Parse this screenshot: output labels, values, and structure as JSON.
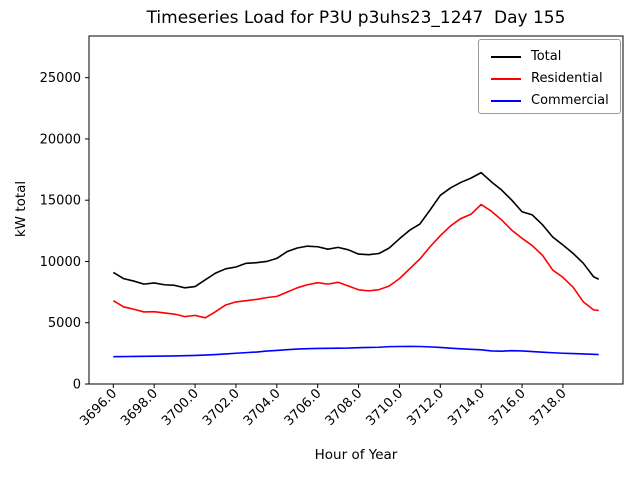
{
  "chart_data": {
    "type": "line",
    "title": "Timeseries Load for P3U p3uhs23_1247  Day 155",
    "xlabel": "Hour of Year",
    "ylabel": "kW total",
    "grid": false,
    "legend_position": "upper right",
    "xlim": [
      3694.81,
      3720.94
    ],
    "ylim": [
      0,
      28400
    ],
    "xticks": {
      "values": [
        3696,
        3698,
        3700,
        3702,
        3704,
        3706,
        3708,
        3710,
        3712,
        3714,
        3716,
        3718
      ],
      "labels": [
        "3696.0",
        "3698.0",
        "3700.0",
        "3702.0",
        "3704.0",
        "3706.0",
        "3708.0",
        "3710.0",
        "3712.0",
        "3714.0",
        "3716.0",
        "3718.0"
      ]
    },
    "yticks": {
      "values": [
        0,
        5000,
        10000,
        15000,
        20000,
        25000
      ],
      "labels": [
        "0",
        "5000",
        "10000",
        "15000",
        "20000",
        "25000"
      ]
    },
    "x": [
      3696,
      3696.5,
      3697,
      3697.5,
      3698,
      3698.5,
      3699,
      3699.5,
      3700,
      3700.5,
      3701,
      3701.5,
      3702,
      3702.5,
      3703,
      3703.5,
      3704,
      3704.5,
      3705,
      3705.5,
      3706,
      3706.5,
      3707,
      3707.5,
      3708,
      3708.5,
      3709,
      3709.5,
      3710,
      3710.5,
      3711,
      3711.5,
      3712,
      3712.5,
      3713,
      3713.5,
      3714,
      3714.5,
      3715,
      3715.5,
      3716,
      3716.5,
      3717,
      3717.5,
      3718,
      3718.5,
      3719,
      3719.5,
      3719.75
    ],
    "series": [
      {
        "name": "Total",
        "color": "#000000",
        "values": [
          9100,
          8600,
          8400,
          8150,
          8250,
          8100,
          8050,
          7850,
          7950,
          8500,
          9050,
          9400,
          9550,
          9850,
          9900,
          10000,
          10250,
          10800,
          11100,
          11250,
          11200,
          11000,
          11150,
          10950,
          10600,
          10550,
          10650,
          11100,
          11850,
          12550,
          13050,
          14200,
          15400,
          16000,
          16450,
          16800,
          17250,
          16500,
          15830,
          15000,
          14060,
          13800,
          13000,
          12000,
          11340,
          10660,
          9850,
          8750,
          8550
        ]
      },
      {
        "name": "Residential",
        "color": "#ff0000",
        "values": [
          6800,
          6300,
          6100,
          5880,
          5900,
          5800,
          5700,
          5500,
          5600,
          5400,
          5900,
          6450,
          6700,
          6800,
          6900,
          7050,
          7150,
          7500,
          7850,
          8100,
          8270,
          8150,
          8300,
          8000,
          7690,
          7600,
          7700,
          8000,
          8600,
          9400,
          10200,
          11200,
          12100,
          12900,
          13500,
          13850,
          14650,
          14100,
          13390,
          12550,
          11890,
          11300,
          10500,
          9300,
          8700,
          7900,
          6700,
          6050,
          6000
        ]
      },
      {
        "name": "Commercial",
        "color": "#0000ff",
        "values": [
          2230,
          2240,
          2250,
          2260,
          2270,
          2280,
          2290,
          2310,
          2330,
          2360,
          2400,
          2450,
          2510,
          2560,
          2610,
          2690,
          2740,
          2800,
          2850,
          2880,
          2900,
          2910,
          2920,
          2930,
          2960,
          2980,
          3000,
          3050,
          3060,
          3070,
          3060,
          3030,
          2980,
          2920,
          2870,
          2830,
          2790,
          2700,
          2680,
          2720,
          2700,
          2650,
          2600,
          2550,
          2510,
          2480,
          2450,
          2420,
          2400
        ]
      }
    ]
  }
}
